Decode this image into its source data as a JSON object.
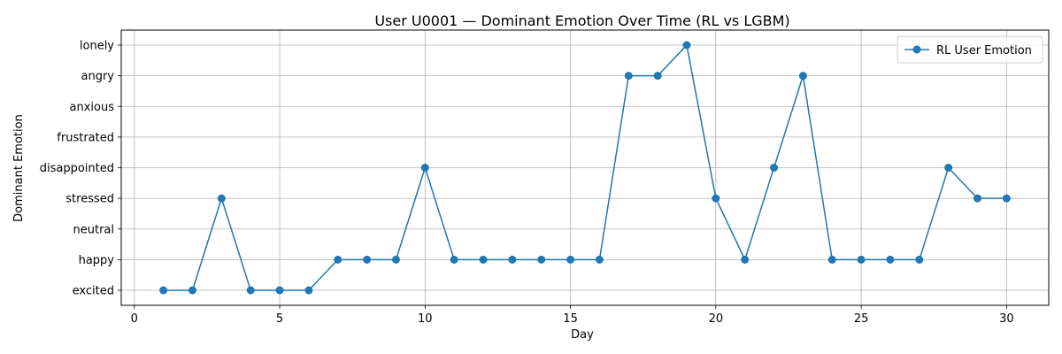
{
  "chart_data": {
    "type": "line",
    "title": "User U0001 — Dominant Emotion Over Time (RL vs LGBM)",
    "xlabel": "Day",
    "ylabel": "Dominant Emotion",
    "xlim": [
      -0.45,
      31.45
    ],
    "xticks": [
      0,
      5,
      10,
      15,
      20,
      25,
      30
    ],
    "categories": [
      "excited",
      "happy",
      "neutral",
      "stressed",
      "disappointed",
      "frustrated",
      "anxious",
      "angry",
      "lonely"
    ],
    "grid": true,
    "legend_position": "top-right",
    "series": [
      {
        "name": "RL User Emotion",
        "color": "#1f77b4",
        "marker": "circle",
        "x": [
          1,
          2,
          3,
          4,
          5,
          6,
          7,
          8,
          9,
          10,
          11,
          12,
          13,
          14,
          15,
          16,
          17,
          18,
          19,
          20,
          21,
          22,
          23,
          24,
          25,
          26,
          27,
          28,
          29,
          30
        ],
        "values": [
          "excited",
          "excited",
          "stressed",
          "excited",
          "excited",
          "excited",
          "happy",
          "happy",
          "happy",
          "disappointed",
          "happy",
          "happy",
          "happy",
          "happy",
          "happy",
          "happy",
          "angry",
          "angry",
          "lonely",
          "stressed",
          "happy",
          "disappointed",
          "angry",
          "happy",
          "happy",
          "happy",
          "happy",
          "disappointed",
          "stressed",
          "stressed"
        ]
      }
    ]
  }
}
